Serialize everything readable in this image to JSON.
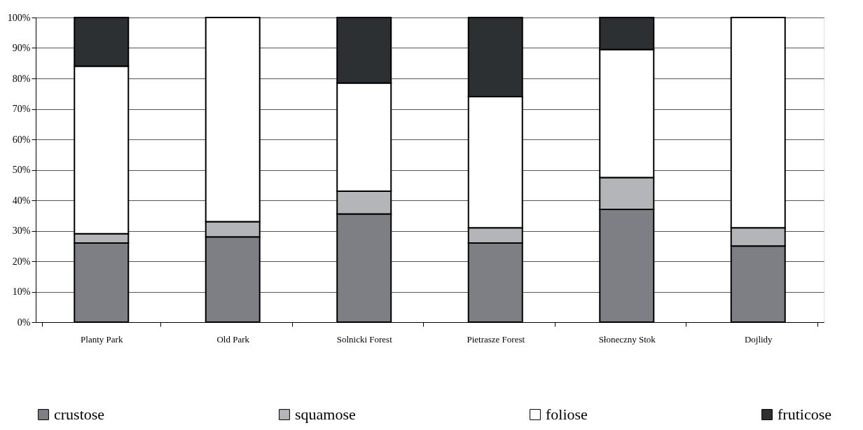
{
  "chart_data": {
    "type": "bar",
    "stacked": true,
    "categories": [
      "Planty Park",
      "Old Park",
      "Solnicki Forest",
      "Pietrasze Forest",
      "Słoneczny Stok",
      "Dojlidy"
    ],
    "series": [
      {
        "name": "crustose",
        "color": "#7e7f84",
        "values": [
          26,
          28,
          35.5,
          26,
          37,
          25
        ]
      },
      {
        "name": "squamose",
        "color": "#b4b5b9",
        "values": [
          3,
          5,
          7.5,
          5,
          10.5,
          6
        ]
      },
      {
        "name": "foliose",
        "color": "#ffffff",
        "values": [
          55,
          67,
          35.5,
          43,
          42,
          69
        ]
      },
      {
        "name": "fruticose",
        "color": "#2d3033",
        "values": [
          16,
          0,
          21.5,
          26,
          10.5,
          0
        ]
      }
    ],
    "ylim": [
      0,
      100
    ],
    "yticks": [
      {
        "value": 0,
        "label": "0%"
      },
      {
        "value": 10,
        "label": "10%"
      },
      {
        "value": 20,
        "label": "20%"
      },
      {
        "value": 30,
        "label": "30%"
      },
      {
        "value": 40,
        "label": "40%"
      },
      {
        "value": 50,
        "label": "50%"
      },
      {
        "value": 60,
        "label": "60%"
      },
      {
        "value": 70,
        "label": "70%"
      },
      {
        "value": 80,
        "label": "80%"
      },
      {
        "value": 90,
        "label": "90%"
      },
      {
        "value": 100,
        "label": "100%"
      }
    ],
    "grid": "y",
    "legend": "bottom"
  }
}
